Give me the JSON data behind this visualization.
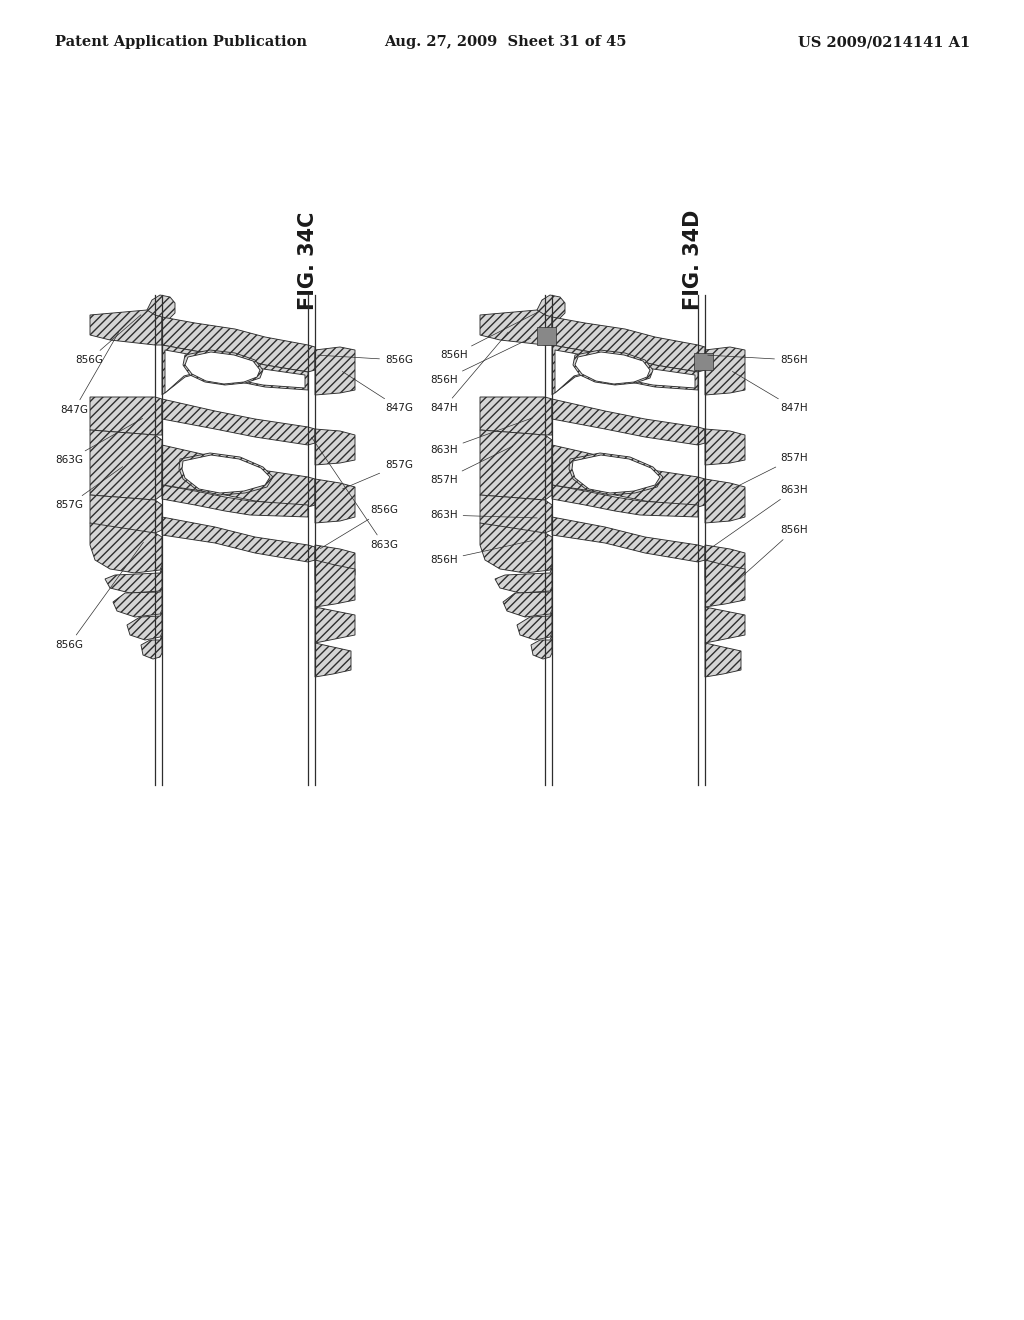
{
  "background_color": "#ffffff",
  "header_left": "Patent Application Publication",
  "header_mid": "Aug. 27, 2009  Sheet 31 of 45",
  "header_right": "US 2009/0214141 A1",
  "fig_label_C": "FIG. 34C",
  "fig_label_D": "FIG. 34D",
  "text_color": "#1a1a1a",
  "line_color": "#303030",
  "header_fontsize": 10.5,
  "label_fontsize": 7.5,
  "fig_label_fontsize": 15
}
